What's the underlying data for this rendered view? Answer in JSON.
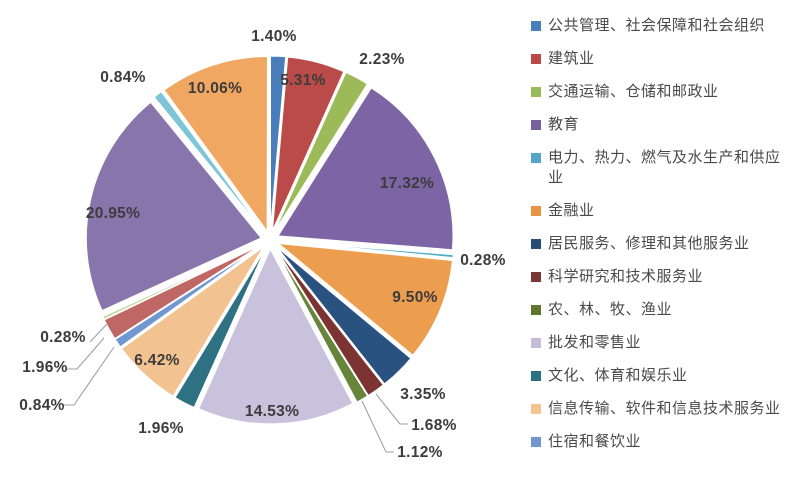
{
  "chart_data": {
    "type": "pie",
    "unit": "percent",
    "start_angle_deg": 0,
    "direction": "clockwise",
    "legend_position": "right",
    "exploded": true,
    "slices": [
      {
        "label": "1.40%",
        "value": 1.4,
        "name": "公共管理、社会保障和社会组织",
        "color": "#4A7EBB"
      },
      {
        "label": "5.31%",
        "value": 5.31,
        "name": "建筑业",
        "color": "#BB4B49"
      },
      {
        "label": "2.23%",
        "value": 2.23,
        "name": "交通运输、仓储和邮政业",
        "color": "#9CBA58"
      },
      {
        "label": "17.32%",
        "value": 17.32,
        "name": "教育",
        "color": "#7C64A5"
      },
      {
        "label": "0.28%",
        "value": 0.28,
        "name": "电力、热力、燃气及水生产和供应业",
        "color": "#4BACC6"
      },
      {
        "label": "9.50%",
        "value": 9.5,
        "name": "金融业",
        "color": "#ED9D4E"
      },
      {
        "label": "3.35%",
        "value": 3.35,
        "name": "居民服务、修理和其他服务业",
        "color": "#2A5280"
      },
      {
        "label": "1.68%",
        "value": 1.68,
        "name": "科学研究和技术服务业",
        "color": "#7C3432"
      },
      {
        "label": "1.12%",
        "value": 1.12,
        "name": "农、林、牧、渔业",
        "color": "#67853A"
      },
      {
        "label": "14.53%",
        "value": 14.53,
        "name": "批发和零售业",
        "color": "#C9C2DC"
      },
      {
        "label": "1.96%",
        "value": 1.96,
        "name": "文化、体育和娱乐业",
        "color": "#2D7183"
      },
      {
        "label": "6.42%",
        "value": 6.42,
        "name": "信息传输、软件和信息技术服务业",
        "color": "#F3C291"
      },
      {
        "label": "0.84%",
        "value": 0.84,
        "name": "住宿和餐饮业",
        "color": "#7097CF"
      },
      {
        "label": "1.96%",
        "value": 1.96,
        "color": "#BE6764"
      },
      {
        "label": "0.28%",
        "value": 0.28,
        "color": "#C3D69B"
      },
      {
        "label": "20.95%",
        "value": 20.95,
        "color": "#8875AC"
      },
      {
        "label": "0.84%",
        "value": 0.84,
        "color": "#7EC5D8"
      },
      {
        "label": "10.06%",
        "value": 10.06,
        "color": "#F0A761"
      }
    ]
  },
  "legend": {
    "items": [
      {
        "label": "公共管理、社会保障和社会组织",
        "color": "#4A7EBB"
      },
      {
        "label": "建筑业",
        "color": "#B94A48"
      },
      {
        "label": "交通运输、仓储和邮政业",
        "color": "#9BBB59"
      },
      {
        "label": "教育",
        "color": "#7560A0"
      },
      {
        "label": "电力、热力、燃气及水生产和供应业",
        "color": "#55A5C8"
      },
      {
        "label": "金融业",
        "color": "#E89243"
      },
      {
        "label": "居民服务、修理和其他服务业",
        "color": "#254E77"
      },
      {
        "label": "科学研究和技术服务业",
        "color": "#7B3735"
      },
      {
        "label": "农、林、牧、渔业",
        "color": "#5F7530"
      },
      {
        "label": "批发和零售业",
        "color": "#C3BCD6"
      },
      {
        "label": "文化、体育和娱乐业",
        "color": "#2C7282"
      },
      {
        "label": "信息传输、软件和信息技术服务业",
        "color": "#F4C48F"
      },
      {
        "label": "住宿和餐饮业",
        "color": "#7396CE"
      }
    ]
  }
}
